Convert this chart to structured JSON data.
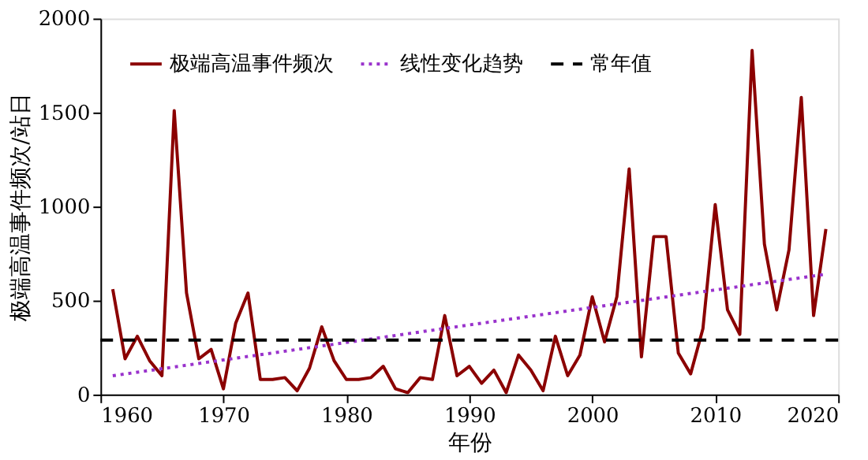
{
  "chart_data": {
    "type": "line",
    "xlabel": "年份",
    "ylabel": "极端高温事件频次/站日",
    "xlim": [
      1960,
      2020
    ],
    "xticks": [
      1960,
      1970,
      1980,
      1990,
      2000,
      2010,
      2020
    ],
    "ylim": [
      0,
      2000
    ],
    "yticks": [
      0,
      500,
      1000,
      1500,
      2000
    ],
    "grid": false,
    "legend": "top left",
    "line_style": "solid",
    "series": [
      {
        "name": "极端高温事件频次",
        "color": "#8b0000",
        "x": [
          1961,
          1962,
          1963,
          1964,
          1965,
          1966,
          1967,
          1968,
          1969,
          1970,
          1971,
          1972,
          1973,
          1974,
          1975,
          1976,
          1977,
          1978,
          1979,
          1980,
          1981,
          1982,
          1983,
          1984,
          1985,
          1986,
          1987,
          1988,
          1989,
          1990,
          1991,
          1992,
          1993,
          1994,
          1995,
          1996,
          1997,
          1998,
          1999,
          2000,
          2001,
          2002,
          2003,
          2004,
          2005,
          2006,
          2007,
          2008,
          2009,
          2010,
          2011,
          2012,
          2013,
          2014,
          2015,
          2016,
          2017,
          2018,
          2019
        ],
        "values": [
          560,
          190,
          310,
          180,
          100,
          1510,
          540,
          190,
          240,
          30,
          380,
          540,
          80,
          80,
          90,
          20,
          140,
          360,
          180,
          80,
          80,
          90,
          150,
          30,
          10,
          90,
          80,
          420,
          100,
          150,
          60,
          130,
          10,
          210,
          130,
          20,
          310,
          100,
          210,
          520,
          280,
          520,
          1200,
          200,
          840,
          840,
          220,
          110,
          350,
          1010,
          450,
          320,
          1830,
          800,
          450,
          770,
          1580,
          420,
          880
        ]
      },
      {
        "name": "线性变化趋势",
        "color": "#9932cc",
        "type": "line",
        "line_style": "dotted",
        "x": [
          1961,
          2019
        ],
        "values": [
          100,
          640
        ]
      }
    ],
    "ref_lines": [
      {
        "axis": "y",
        "value": 290,
        "label": "常年值",
        "color": "#000000",
        "line_style": "dashed"
      }
    ]
  }
}
